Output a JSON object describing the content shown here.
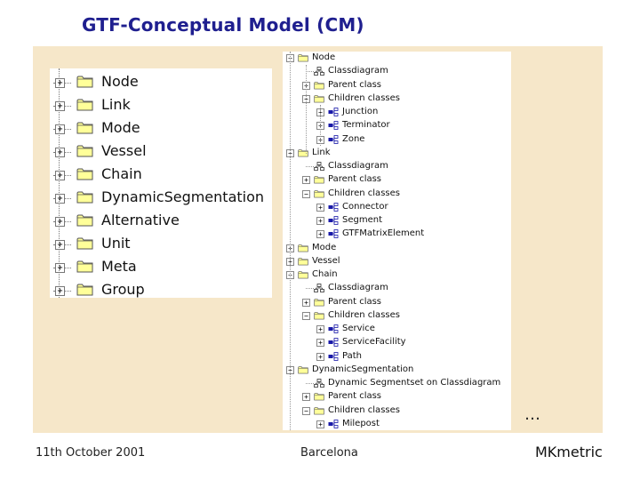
{
  "slide": {
    "title": "GTF-Conceptual Model (CM)",
    "ellipsis": "…",
    "footer": {
      "date": "11th October 2001",
      "place": "Barcelona",
      "brand": "MKmetric"
    }
  },
  "colors": {
    "title": "#1f1f8f",
    "panel_background": "#f6e7c9",
    "folder_fill": "#ffff99",
    "folder_stroke": "#555555",
    "class_icon": "#1a1aa8"
  },
  "left_tree": {
    "items": [
      {
        "label": "Node",
        "expander": "+",
        "icon": "folder-icon"
      },
      {
        "label": "Link",
        "expander": "+",
        "icon": "folder-icon"
      },
      {
        "label": "Mode",
        "expander": "+",
        "icon": "folder-icon"
      },
      {
        "label": "Vessel",
        "expander": "+",
        "icon": "folder-icon"
      },
      {
        "label": "Chain",
        "expander": "+",
        "icon": "folder-icon"
      },
      {
        "label": "DynamicSegmentation",
        "expander": "+",
        "icon": "folder-icon"
      },
      {
        "label": "Alternative",
        "expander": "+",
        "icon": "folder-icon"
      },
      {
        "label": "Unit",
        "expander": "+",
        "icon": "folder-icon"
      },
      {
        "label": "Meta",
        "expander": "+",
        "icon": "folder-icon"
      },
      {
        "label": "Group",
        "expander": "+",
        "icon": "folder-icon"
      }
    ]
  },
  "right_tree": {
    "items": [
      {
        "label": "Node",
        "level": 0,
        "expander": "−",
        "icon": "folder"
      },
      {
        "label": "Classdiagram",
        "level": 1,
        "expander": "",
        "icon": "diagram"
      },
      {
        "label": "Parent class",
        "level": 1,
        "expander": "+",
        "icon": "folder"
      },
      {
        "label": "Children classes",
        "level": 1,
        "expander": "−",
        "icon": "folder"
      },
      {
        "label": "Junction",
        "level": 2,
        "expander": "+",
        "icon": "class"
      },
      {
        "label": "Terminator",
        "level": 2,
        "expander": "+",
        "icon": "class"
      },
      {
        "label": "Zone",
        "level": 2,
        "expander": "+",
        "icon": "class"
      },
      {
        "label": "Link",
        "level": 0,
        "expander": "−",
        "icon": "folder"
      },
      {
        "label": "Classdiagram",
        "level": 1,
        "expander": "",
        "icon": "diagram"
      },
      {
        "label": "Parent class",
        "level": 1,
        "expander": "+",
        "icon": "folder"
      },
      {
        "label": "Children classes",
        "level": 1,
        "expander": "−",
        "icon": "folder"
      },
      {
        "label": "Connector",
        "level": 2,
        "expander": "+",
        "icon": "class"
      },
      {
        "label": "Segment",
        "level": 2,
        "expander": "+",
        "icon": "class"
      },
      {
        "label": "GTFMatrixElement",
        "level": 2,
        "expander": "+",
        "icon": "class"
      },
      {
        "label": "Mode",
        "level": 0,
        "expander": "+",
        "icon": "folder"
      },
      {
        "label": "Vessel",
        "level": 0,
        "expander": "+",
        "icon": "folder"
      },
      {
        "label": "Chain",
        "level": 0,
        "expander": "−",
        "icon": "folder"
      },
      {
        "label": "Classdiagram",
        "level": 1,
        "expander": "",
        "icon": "diagram"
      },
      {
        "label": "Parent class",
        "level": 1,
        "expander": "+",
        "icon": "folder"
      },
      {
        "label": "Children classes",
        "level": 1,
        "expander": "−",
        "icon": "folder"
      },
      {
        "label": "Service",
        "level": 2,
        "expander": "+",
        "icon": "class"
      },
      {
        "label": "ServiceFacility",
        "level": 2,
        "expander": "+",
        "icon": "class"
      },
      {
        "label": "Path",
        "level": 2,
        "expander": "+",
        "icon": "class"
      },
      {
        "label": "DynamicSegmentation",
        "level": 0,
        "expander": "−",
        "icon": "folder"
      },
      {
        "label": "Dynamic Segmentset on Classdiagram",
        "level": 1,
        "expander": "",
        "icon": "diagram"
      },
      {
        "label": "Parent class",
        "level": 1,
        "expander": "+",
        "icon": "folder"
      },
      {
        "label": "Children classes",
        "level": 1,
        "expander": "−",
        "icon": "folder"
      },
      {
        "label": "Milepost",
        "level": 2,
        "expander": "+",
        "icon": "class"
      }
    ]
  }
}
